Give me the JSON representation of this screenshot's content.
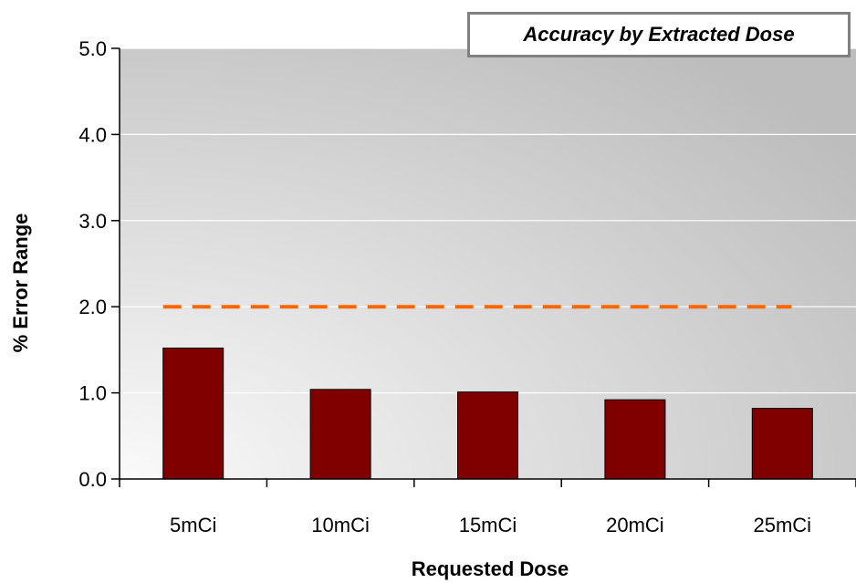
{
  "chart_data": {
    "type": "bar",
    "title": "Accuracy by Extracted Dose",
    "xlabel": "Requested Dose",
    "ylabel": "% Error Range",
    "categories": [
      "5mCi",
      "10mCi",
      "15mCi",
      "20mCi",
      "25mCi"
    ],
    "series": [
      {
        "values": [
          1.52,
          1.04,
          1.01,
          0.92,
          0.82
        ]
      }
    ],
    "reference_line": {
      "value": 2.0,
      "style": "dashed"
    },
    "ylim": [
      0,
      5
    ],
    "yticks": [
      "0.0",
      "1.0",
      "2.0",
      "3.0",
      "4.0",
      "5.0"
    ],
    "grid": true,
    "legend": "none",
    "colors": {
      "bar": "#800000",
      "reference_line": "#ff6600",
      "plot_bg_light": "#fafafa",
      "plot_bg_dark": "#bdbdbd"
    }
  }
}
